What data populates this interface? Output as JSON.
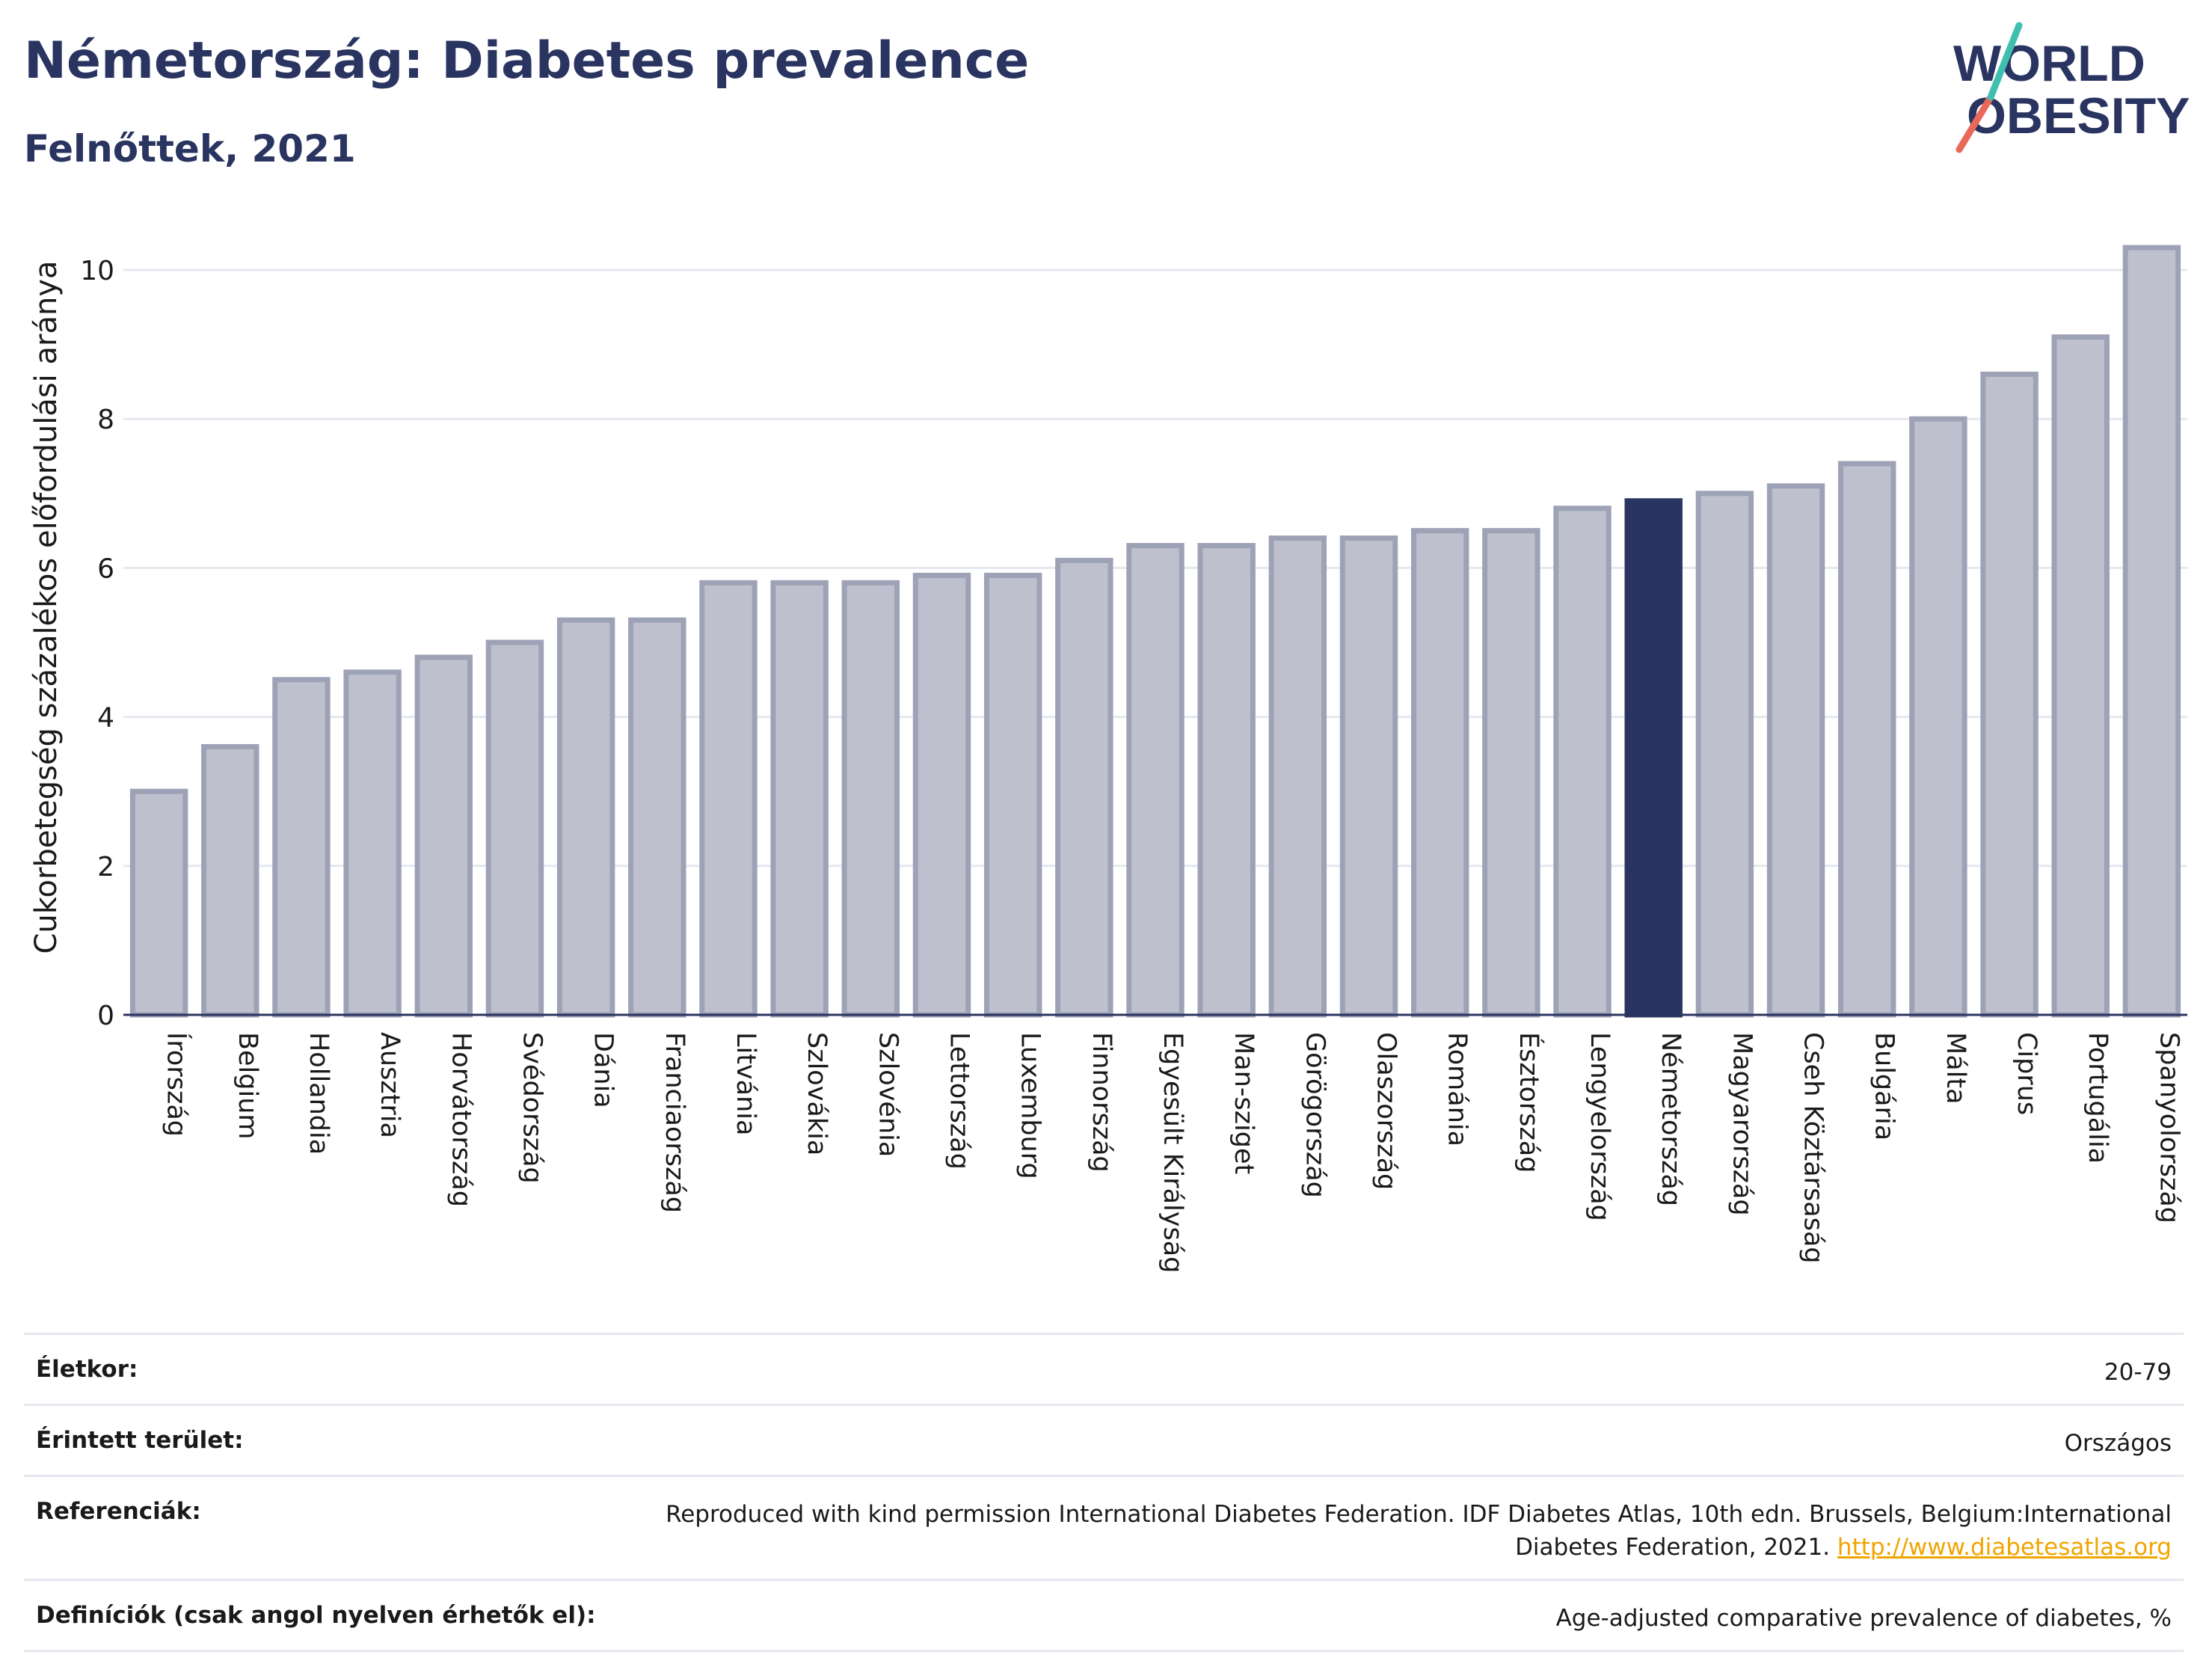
{
  "header": {
    "title": "Németország: Diabetes prevalence",
    "subtitle": "Felnőttek, 2021"
  },
  "logo": {
    "line1": "WORLD",
    "line2": "OBESITY",
    "accent_colors": [
      "#e8685a",
      "#3fbfb0"
    ]
  },
  "colors": {
    "bar": "#bec1cd",
    "bar_border": "#9da2b6",
    "highlight": "#2a3460",
    "grid": "#e6e8f0",
    "axis": "#2a3460",
    "link": "#f0a500"
  },
  "chart_data": {
    "type": "bar",
    "title": "Németország: Diabetes prevalence",
    "subtitle": "Felnőttek, 2021",
    "xlabel": "",
    "ylabel": "Cukorbetegség százalékos előfordulási aránya",
    "ylim": [
      0,
      10.5
    ],
    "yticks": [
      0,
      2,
      4,
      6,
      8,
      10
    ],
    "grid": true,
    "highlight": "Németország",
    "categories": [
      "Írország",
      "Belgium",
      "Hollandia",
      "Ausztria",
      "Horvátország",
      "Svédország",
      "Dánia",
      "Franciaország",
      "Litvánia",
      "Szlovákia",
      "Szlovénia",
      "Lettország",
      "Luxemburg",
      "Finnország",
      "Egyesült Királyság",
      "Man-sziget",
      "Görögország",
      "Olaszország",
      "Románia",
      "Észtország",
      "Lengyelország",
      "Németország",
      "Magyarország",
      "Cseh Köztársaság",
      "Bulgária",
      "Málta",
      "Ciprus",
      "Portugália",
      "Spanyolország"
    ],
    "values": [
      3.0,
      3.6,
      4.5,
      4.6,
      4.8,
      5.0,
      5.3,
      5.3,
      5.8,
      5.8,
      5.8,
      5.9,
      5.9,
      6.1,
      6.3,
      6.3,
      6.4,
      6.4,
      6.5,
      6.5,
      6.8,
      6.9,
      7.0,
      7.1,
      7.4,
      8.0,
      8.6,
      9.1,
      10.3
    ]
  },
  "info_table": {
    "rows": [
      {
        "label": "Életkor:",
        "value": "20-79"
      },
      {
        "label": "Érintett terület:",
        "value": "Országos"
      },
      {
        "label": "Referenciák:",
        "value": "Reproduced with kind permission International Diabetes Federation.  IDF Diabetes Atlas, 10th edn. Brussels, Belgium:International Diabetes Federation, 2021.",
        "link": "http://www.diabetesatlas.org"
      },
      {
        "label": "Definíciók (csak angol nyelven érhetők el):",
        "value": "Age-adjusted comparative prevalence of diabetes, %"
      }
    ]
  }
}
